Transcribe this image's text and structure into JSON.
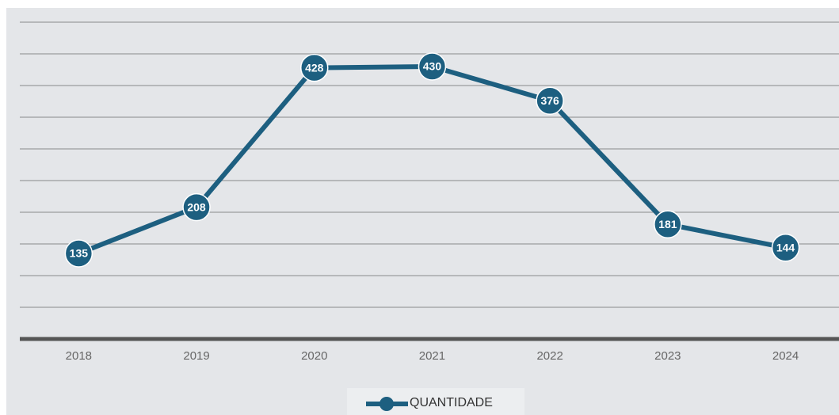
{
  "chart_data": {
    "type": "line",
    "categories": [
      "2018",
      "2019",
      "2020",
      "2021",
      "2022",
      "2023",
      "2024"
    ],
    "series": [
      {
        "name": "QUANTIDADE",
        "color": "#1d5f80",
        "values": [
          135,
          208,
          428,
          430,
          376,
          181,
          144
        ]
      }
    ],
    "ylim": [
      0,
      500
    ],
    "yticks": [
      0,
      50,
      100,
      150,
      200,
      250,
      300,
      350,
      400,
      450,
      500
    ],
    "grid": true,
    "legend": "bottom"
  }
}
